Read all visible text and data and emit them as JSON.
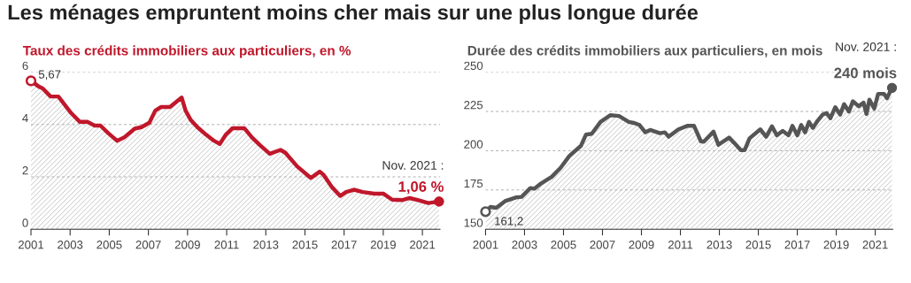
{
  "chart_data": [
    {
      "type": "area",
      "title": "Les ménages empruntent moins cher mais sur une plus longue durée",
      "subtitle": "Taux des crédits immobiliers aux particuliers, en %",
      "x": [
        2001.0,
        2001.4,
        2001.6,
        2002.0,
        2002.4,
        2003.05,
        2003.5,
        2003.9,
        2004.25,
        2004.55,
        2004.95,
        2005.4,
        2005.75,
        2006.3,
        2006.65,
        2007.05,
        2007.35,
        2007.65,
        2008.1,
        2008.7,
        2008.9,
        2009.15,
        2009.5,
        2009.95,
        2010.35,
        2010.65,
        2010.95,
        2011.3,
        2011.9,
        2012.3,
        2012.7,
        2013.2,
        2013.75,
        2014.0,
        2014.6,
        2015.3,
        2015.75,
        2015.95,
        2016.4,
        2016.8,
        2017.1,
        2017.5,
        2017.95,
        2018.55,
        2019.0,
        2019.45,
        2019.95,
        2020.35,
        2020.8,
        2021.3,
        2021.85
      ],
      "series": [
        {
          "color": "#c0172b",
          "values": [
            5.67,
            5.45,
            5.38,
            5.07,
            5.07,
            4.44,
            4.1,
            4.1,
            3.96,
            3.96,
            3.67,
            3.38,
            3.5,
            3.84,
            3.9,
            4.07,
            4.53,
            4.67,
            4.67,
            5.03,
            4.53,
            4.19,
            3.9,
            3.61,
            3.38,
            3.26,
            3.61,
            3.86,
            3.86,
            3.5,
            3.21,
            2.88,
            3.03,
            2.92,
            2.4,
            1.96,
            2.2,
            2.08,
            1.59,
            1.27,
            1.42,
            1.51,
            1.42,
            1.36,
            1.36,
            1.13,
            1.11,
            1.19,
            1.11,
            1.0,
            1.06
          ]
        }
      ],
      "xlim": [
        2001,
        2021.9
      ],
      "xticks": [
        2001,
        2003,
        2005,
        2007,
        2009,
        2011,
        2013,
        2015,
        2017,
        2019,
        2021
      ],
      "ylim": [
        0,
        6
      ],
      "yticks": [
        0,
        2,
        4,
        6
      ],
      "grid": "y",
      "annotations": [
        {
          "text": "5,67",
          "x": 2001.0,
          "y": 5.67
        },
        {
          "text": "Nov. 2021 :",
          "x": 2021.85,
          "y": 1.06
        },
        {
          "text": "1,06 %",
          "x": 2021.85,
          "y": 1.06
        }
      ]
    },
    {
      "type": "area",
      "subtitle": "Durée des crédits immobiliers aux particuliers, en mois",
      "x": [
        2001.0,
        2001.25,
        2001.55,
        2002.0,
        2002.55,
        2002.85,
        2003.3,
        2003.5,
        2003.8,
        2004.4,
        2004.85,
        2005.3,
        2005.9,
        2006.15,
        2006.45,
        2006.9,
        2007.4,
        2007.85,
        2008.35,
        2008.6,
        2008.9,
        2009.2,
        2009.45,
        2009.95,
        2010.2,
        2010.4,
        2010.9,
        2011.35,
        2011.7,
        2012.05,
        2012.2,
        2012.7,
        2012.95,
        2013.5,
        2013.75,
        2014.1,
        2014.3,
        2014.55,
        2015.1,
        2015.4,
        2015.7,
        2015.95,
        2016.25,
        2016.55,
        2016.75,
        2017.0,
        2017.2,
        2017.4,
        2017.6,
        2017.8,
        2018.05,
        2018.3,
        2018.5,
        2018.7,
        2018.95,
        2019.2,
        2019.4,
        2019.65,
        2019.85,
        2020.15,
        2020.4,
        2020.55,
        2020.7,
        2020.95,
        2021.15,
        2021.45,
        2021.6,
        2021.86
      ],
      "series": [
        {
          "color": "#555555",
          "values": [
            161.2,
            164.2,
            163.6,
            167.9,
            170.2,
            170.6,
            176.2,
            175.8,
            178.7,
            183.4,
            189.1,
            196.6,
            203.2,
            210.2,
            210.8,
            218.3,
            222.6,
            222.1,
            218.3,
            217.7,
            216.4,
            211.7,
            213.2,
            211.1,
            211.7,
            208.9,
            213.6,
            215.8,
            215.8,
            206.0,
            205.7,
            212.1,
            203.8,
            208.3,
            205.1,
            200.4,
            200.4,
            207.9,
            213.6,
            208.9,
            215.5,
            209.8,
            212.6,
            209.8,
            215.8,
            209.8,
            216.4,
            211.7,
            218.3,
            214.5,
            219.2,
            223.0,
            223.9,
            220.7,
            227.7,
            223.0,
            229.6,
            224.9,
            231.5,
            228.3,
            230.6,
            223.4,
            232.5,
            226.8,
            236.2,
            236.2,
            233.4,
            240
          ]
        }
      ],
      "xlim": [
        2001,
        2021.9
      ],
      "xticks": [
        2001,
        2003,
        2005,
        2007,
        2009,
        2011,
        2013,
        2015,
        2017,
        2019,
        2021
      ],
      "ylim": [
        150,
        250
      ],
      "yticks": [
        150,
        175,
        200,
        225,
        250
      ],
      "grid": "y",
      "annotations": [
        {
          "text": "161,2",
          "x": 2001.0,
          "y": 161.2
        },
        {
          "text": "Nov. 2021 :",
          "x": 2021.86,
          "y": 240
        },
        {
          "text": "240 mois",
          "x": 2021.86,
          "y": 240
        }
      ]
    }
  ]
}
